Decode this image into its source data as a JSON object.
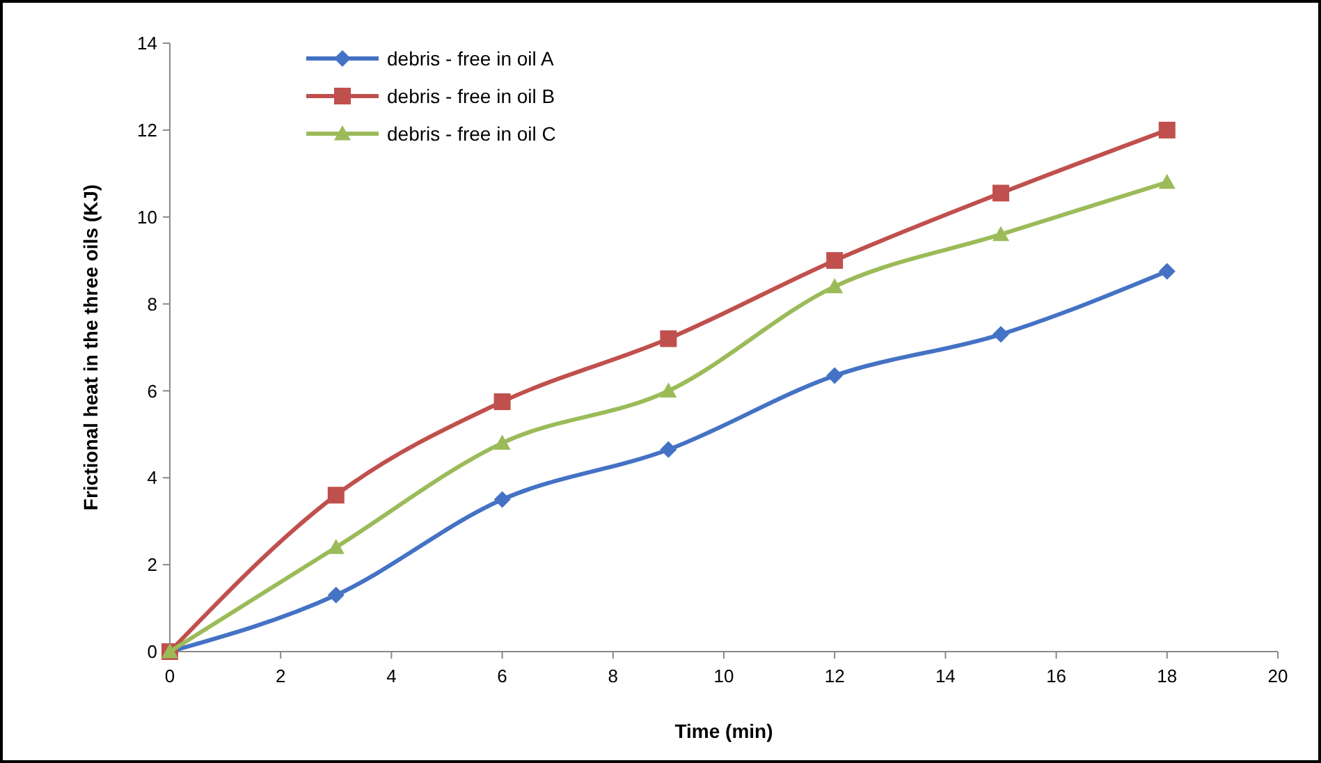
{
  "chart_data": {
    "type": "line",
    "xlabel": "Time  (min)",
    "ylabel": "Frictional heat in the three oils (KJ)",
    "x": [
      0,
      3,
      6,
      9,
      12,
      15,
      18
    ],
    "series": [
      {
        "name": "debris - free in oil A",
        "color": "#4472c4",
        "marker": "diamond",
        "values": [
          0,
          1.3,
          3.5,
          4.65,
          6.35,
          7.3,
          8.75
        ]
      },
      {
        "name": "debris - free in oil B",
        "color": "#c0504d",
        "marker": "square",
        "values": [
          0,
          3.6,
          5.75,
          7.2,
          9,
          10.55,
          12
        ]
      },
      {
        "name": "debris - free in oil C",
        "color": "#9bbb59",
        "marker": "triangle",
        "values": [
          0,
          2.4,
          4.8,
          6,
          8.4,
          9.6,
          10.8
        ]
      }
    ],
    "xlim": [
      0,
      20
    ],
    "xticks": [
      0,
      2,
      4,
      6,
      8,
      10,
      12,
      14,
      16,
      18,
      20
    ],
    "ylim": [
      0,
      14
    ],
    "yticks": [
      0,
      2,
      4,
      6,
      8,
      10,
      12,
      14
    ],
    "grid": false,
    "legend": "top left"
  }
}
